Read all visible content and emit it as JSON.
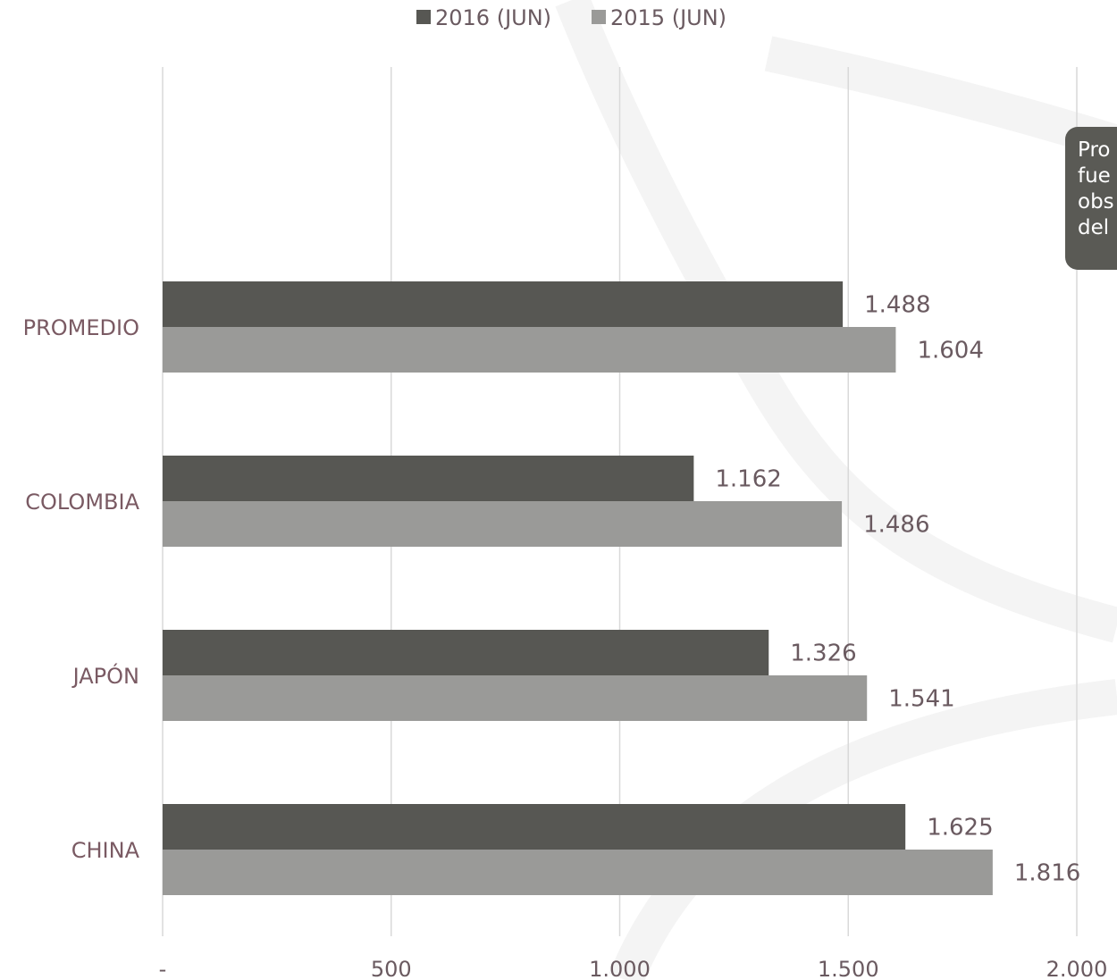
{
  "chart_data": {
    "type": "bar",
    "orientation": "horizontal",
    "title": "",
    "xlabel": "",
    "ylabel": "",
    "categories": [
      "PROMEDIO",
      "COLOMBIA",
      "JAPÓN",
      "CHINA"
    ],
    "series": [
      {
        "name": "2016 (JUN)",
        "color": "#575753",
        "values": [
          1488,
          1162,
          1326,
          1625
        ],
        "labels": [
          "1.488",
          "1.162",
          "1.326",
          "1.625"
        ]
      },
      {
        "name": "2015 (JUN)",
        "color": "#9a9a98",
        "values": [
          1604,
          1486,
          1541,
          1816
        ],
        "labels": [
          "1.604",
          "1.486",
          "1.541",
          "1.816"
        ]
      }
    ],
    "xlim": [
      0,
      2000
    ],
    "ticks": [
      0,
      500,
      1000,
      1500,
      2000
    ],
    "tick_labels": [
      "-",
      "500",
      "1.000",
      "1.500",
      "2.000"
    ],
    "grid": true,
    "legend_position": "top"
  },
  "side_note": {
    "lines": [
      "Pro",
      "fue",
      "obs",
      "del"
    ]
  }
}
